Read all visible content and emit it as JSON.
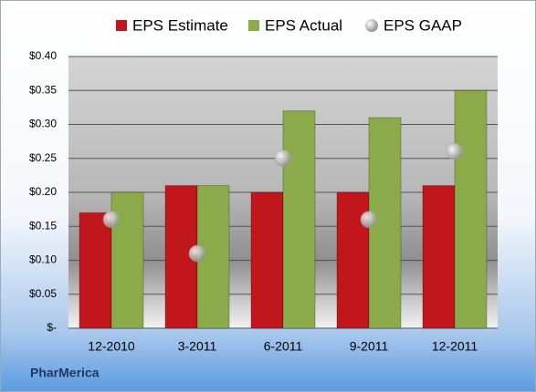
{
  "chart_data": {
    "type": "bar",
    "categories": [
      "12-2010",
      "3-2011",
      "6-2011",
      "9-2011",
      "12-2011"
    ],
    "series": [
      {
        "name": "EPS Estimate",
        "color": "#c0161c",
        "values": [
          0.17,
          0.21,
          0.2,
          0.2,
          0.21
        ]
      },
      {
        "name": "EPS Actual",
        "color": "#8bab4a",
        "values": [
          0.2,
          0.21,
          0.32,
          0.31,
          0.35
        ]
      },
      {
        "name": "EPS GAAP",
        "type": "scatter",
        "color": "#a6a6a6",
        "values": [
          0.16,
          0.11,
          0.25,
          0.16,
          0.26
        ]
      }
    ],
    "ylim": [
      0,
      0.4
    ],
    "yticks": [
      {
        "value": 0,
        "label": "$-"
      },
      {
        "value": 0.05,
        "label": "$0.05"
      },
      {
        "value": 0.1,
        "label": "$0.10"
      },
      {
        "value": 0.15,
        "label": "$0.15"
      },
      {
        "value": 0.2,
        "label": "$0.20"
      },
      {
        "value": 0.25,
        "label": "$0.25"
      },
      {
        "value": 0.3,
        "label": "$0.30"
      },
      {
        "value": 0.35,
        "label": "$0.35"
      },
      {
        "value": 0.4,
        "label": "$0.40"
      }
    ],
    "grid": true,
    "legend": "top",
    "footer": "PharMerica"
  }
}
